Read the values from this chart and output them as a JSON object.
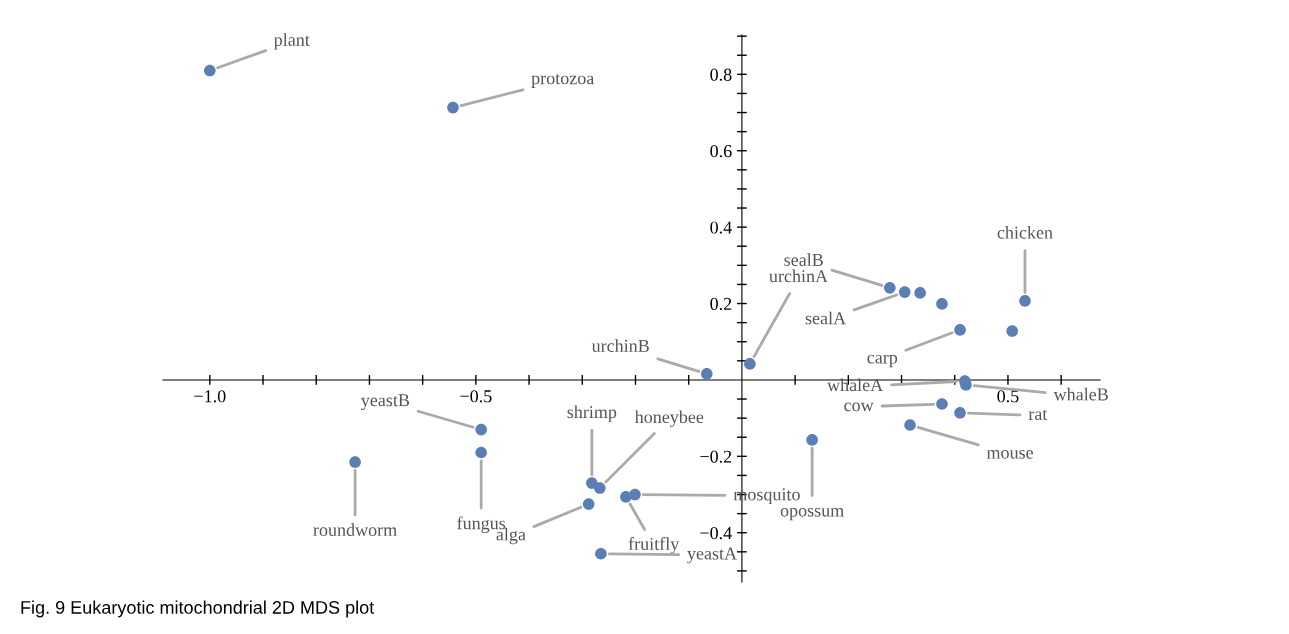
{
  "chart_data": {
    "type": "scatter",
    "marker": "circle",
    "grid": false,
    "x": [
      -1.0,
      -0.543,
      -0.49,
      -0.49,
      -0.727,
      -0.282,
      -0.267,
      -0.288,
      -0.218,
      -0.201,
      -0.265,
      -0.066,
      0.015,
      0.132,
      0.278,
      0.306,
      0.335,
      0.376,
      0.41,
      0.508,
      0.532,
      0.419,
      0.421,
      0.376,
      0.41,
      0.316
    ],
    "series": [
      {
        "color": "#5b7fb5",
        "values": [
          0.81,
          0.713,
          -0.13,
          -0.19,
          -0.215,
          -0.27,
          -0.283,
          -0.325,
          -0.306,
          -0.3,
          -0.455,
          0.016,
          0.042,
          -0.157,
          0.241,
          0.23,
          0.228,
          0.199,
          0.131,
          0.128,
          0.207,
          -0.003,
          -0.013,
          -0.063,
          -0.086,
          -0.118
        ]
      }
    ],
    "xlim": [
      -1.088,
      0.673
    ],
    "ylim": [
      -0.529,
      0.903
    ],
    "xticks": [
      {
        "value": -1.0,
        "label": "−1.0"
      },
      {
        "value": -0.9,
        "label": null
      },
      {
        "value": -0.8,
        "label": null
      },
      {
        "value": -0.7,
        "label": null
      },
      {
        "value": -0.6,
        "label": null
      },
      {
        "value": -0.5,
        "label": "−0.5"
      },
      {
        "value": -0.4,
        "label": null
      },
      {
        "value": -0.3,
        "label": null
      },
      {
        "value": -0.2,
        "label": null
      },
      {
        "value": -0.1,
        "label": null
      },
      {
        "value": 0.1,
        "label": null
      },
      {
        "value": 0.2,
        "label": null
      },
      {
        "value": 0.3,
        "label": null
      },
      {
        "value": 0.4,
        "label": null
      },
      {
        "value": 0.5,
        "label": "0.5"
      },
      {
        "value": 0.6,
        "label": null
      }
    ],
    "yticks": [
      {
        "value": -0.5,
        "label": null
      },
      {
        "value": -0.45,
        "label": null
      },
      {
        "value": -0.4,
        "label": "−0.4"
      },
      {
        "value": -0.35,
        "label": null
      },
      {
        "value": -0.3,
        "label": null
      },
      {
        "value": -0.25,
        "label": null
      },
      {
        "value": -0.2,
        "label": "−0.2"
      },
      {
        "value": -0.15,
        "label": null
      },
      {
        "value": -0.1,
        "label": null
      },
      {
        "value": -0.05,
        "label": null
      },
      {
        "value": 0.05,
        "label": null
      },
      {
        "value": 0.1,
        "label": null
      },
      {
        "value": 0.15,
        "label": null
      },
      {
        "value": 0.2,
        "label": "0.2"
      },
      {
        "value": 0.25,
        "label": null
      },
      {
        "value": 0.3,
        "label": null
      },
      {
        "value": 0.35,
        "label": null
      },
      {
        "value": 0.4,
        "label": "0.4"
      },
      {
        "value": 0.45,
        "label": null
      },
      {
        "value": 0.5,
        "label": null
      },
      {
        "value": 0.55,
        "label": null
      },
      {
        "value": 0.6,
        "label": "0.6"
      },
      {
        "value": 0.65,
        "label": null
      },
      {
        "value": 0.7,
        "label": null
      },
      {
        "value": 0.75,
        "label": null
      },
      {
        "value": 0.8,
        "label": "0.8"
      },
      {
        "value": 0.85,
        "label": null
      },
      {
        "value": 0.9,
        "label": null
      }
    ],
    "annotations": [
      {
        "text": "plant",
        "x": -1.0,
        "y": 0.81
      },
      {
        "text": "protozoa",
        "x": -0.543,
        "y": 0.713
      },
      {
        "text": "yeastB",
        "x": -0.49,
        "y": -0.13
      },
      {
        "text": "fungus",
        "x": -0.49,
        "y": -0.19
      },
      {
        "text": "roundworm",
        "x": -0.727,
        "y": -0.215
      },
      {
        "text": "shrimp",
        "x": -0.282,
        "y": -0.27
      },
      {
        "text": "honeybee",
        "x": -0.267,
        "y": -0.283
      },
      {
        "text": "alga",
        "x": -0.288,
        "y": -0.325
      },
      {
        "text": "fruitfly",
        "x": -0.218,
        "y": -0.306
      },
      {
        "text": "mosquito",
        "x": -0.201,
        "y": -0.3
      },
      {
        "text": "yeastA",
        "x": -0.265,
        "y": -0.455
      },
      {
        "text": "urchinB",
        "x": -0.066,
        "y": 0.016
      },
      {
        "text": "urchinA",
        "x": 0.015,
        "y": 0.042
      },
      {
        "text": "opossum",
        "x": 0.132,
        "y": -0.157
      },
      {
        "text": "sealB",
        "x": 0.278,
        "y": 0.241
      },
      {
        "text": "sealA",
        "x": 0.306,
        "y": 0.23
      },
      {
        "text": "carp",
        "x": 0.41,
        "y": 0.131
      },
      {
        "text": "chicken",
        "x": 0.532,
        "y": 0.207
      },
      {
        "text": "whaleA",
        "x": 0.419,
        "y": -0.003
      },
      {
        "text": "whaleB",
        "x": 0.421,
        "y": -0.013
      },
      {
        "text": "cow",
        "x": 0.376,
        "y": -0.063
      },
      {
        "text": "rat",
        "x": 0.41,
        "y": -0.086
      },
      {
        "text": "mouse",
        "x": 0.316,
        "y": -0.118
      },
      "Fig. 9 Eukaryotic mitochondrial 2D MDS plot"
    ]
  }
}
